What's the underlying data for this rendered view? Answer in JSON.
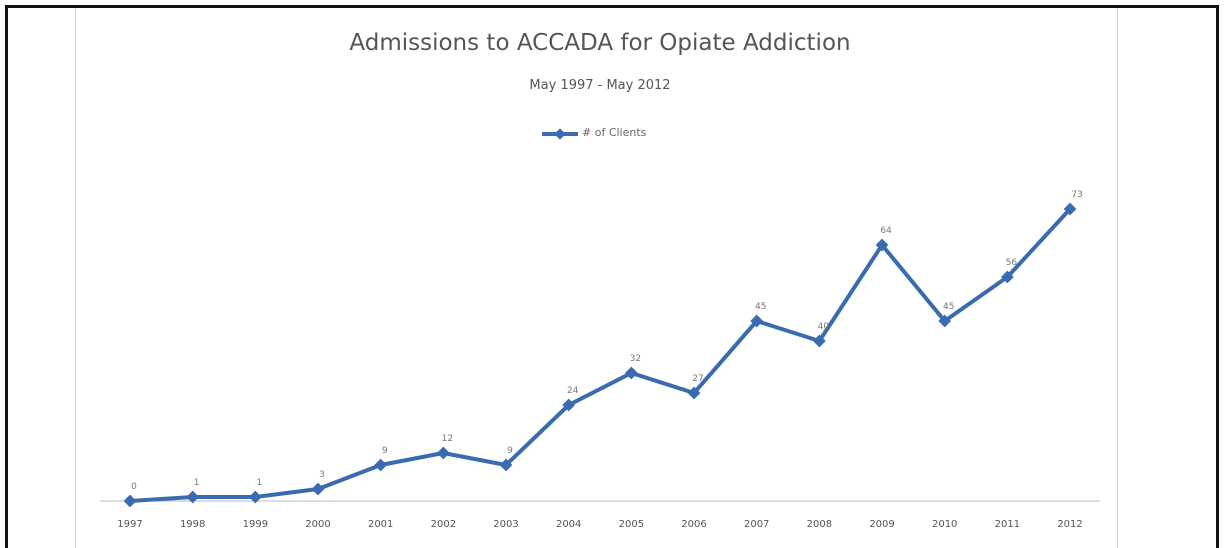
{
  "chart_data": {
    "type": "line",
    "title": "Admissions to ACCADA for Opiate Addiction",
    "subtitle": "May 1997 - May 2012",
    "categories": [
      "1997",
      "1998",
      "1999",
      "2000",
      "2001",
      "2002",
      "2003",
      "2004",
      "2005",
      "2006",
      "2007",
      "2008",
      "2009",
      "2010",
      "2011",
      "2012"
    ],
    "series": [
      {
        "name": "# of Clients",
        "values": [
          0,
          1,
          1,
          3,
          9,
          12,
          9,
          24,
          32,
          27,
          45,
          40,
          64,
          45,
          56,
          73
        ],
        "color": "#3a6aaf"
      }
    ],
    "ylim": [
      0,
      80
    ],
    "grid": false,
    "legend": "top-center",
    "data_labels": true
  }
}
